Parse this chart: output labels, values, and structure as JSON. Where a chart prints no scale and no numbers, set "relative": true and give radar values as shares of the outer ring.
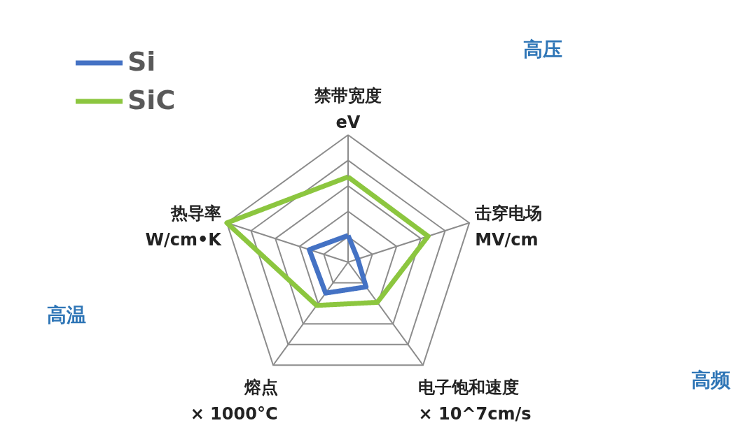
{
  "chart_data": {
    "type": "radar",
    "relative": true,
    "grid": true,
    "legend": "top left",
    "line_style": "solid",
    "marker": "none",
    "categories": [
      "禁带宽度\neV",
      "击穿电场\nMV/cm",
      "电子饱和速度\n× 10^7cm/s",
      "熔点\n× 1000°C",
      "热导率\nW/cm•K"
    ],
    "series": [
      {
        "name": "Si",
        "color": "#4472c4",
        "values": [
          0.21,
          0.08,
          0.24,
          0.3,
          0.32
        ]
      },
      {
        "name": "SiC",
        "color": "#8cc63f",
        "values": [
          0.67,
          0.66,
          0.39,
          0.42,
          1.0
        ]
      }
    ],
    "annotations": [
      "高压",
      "高频",
      "高温"
    ]
  }
}
